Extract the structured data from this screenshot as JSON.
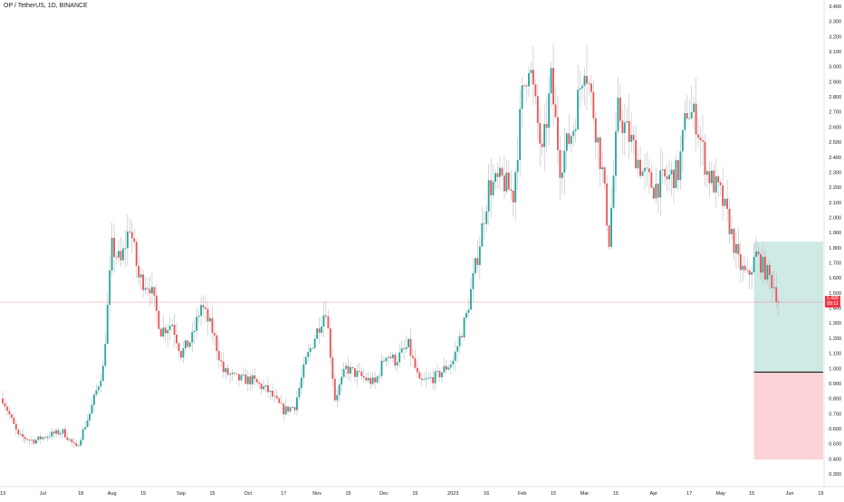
{
  "title": "OP / TetherUS, 1D, BINANCE",
  "colors": {
    "up": "#26a69a",
    "down": "#ef5350",
    "wick": "#b8bcc6",
    "profit_zone": "#cfe9e4",
    "loss_zone": "#fbd3d6",
    "price_line": "#f23645",
    "axis_text": "#131722",
    "axis_line": "#e0e3eb"
  },
  "price_tag": {
    "price": "1.439",
    "countdown": "08:11"
  },
  "chart_data": {
    "type": "candlestick",
    "title": "OP / TetherUS, 1D, BINANCE",
    "ylim": [
      0.2,
      3.45
    ],
    "y_ticks": [
      "3.400",
      "3.300",
      "3.200",
      "3.100",
      "3.000",
      "2.900",
      "2.800",
      "2.700",
      "2.600",
      "2.500",
      "2.400",
      "2.300",
      "2.200",
      "2.100",
      "2.000",
      "1.900",
      "1.800",
      "1.700",
      "1.600",
      "1.500",
      "1.400",
      "1.300",
      "1.200",
      "1.100",
      "1.000",
      "0.900",
      "0.800",
      "0.700",
      "0.600",
      "0.500",
      "0.400",
      "0.300"
    ],
    "x_ticks": [
      {
        "label": "13",
        "date": "2022-06-13"
      },
      {
        "label": "Jul",
        "date": "2022-07-01"
      },
      {
        "label": "18",
        "date": "2022-07-18"
      },
      {
        "label": "Aug",
        "date": "2022-08-01"
      },
      {
        "label": "15",
        "date": "2022-08-15"
      },
      {
        "label": "Sep",
        "date": "2022-09-01"
      },
      {
        "label": "15",
        "date": "2022-09-15"
      },
      {
        "label": "Oct",
        "date": "2022-10-01"
      },
      {
        "label": "17",
        "date": "2022-10-17"
      },
      {
        "label": "Nov",
        "date": "2022-11-01"
      },
      {
        "label": "15",
        "date": "2022-11-15"
      },
      {
        "label": "Dec",
        "date": "2022-12-01"
      },
      {
        "label": "15",
        "date": "2022-12-15"
      },
      {
        "label": "2023",
        "date": "2023-01-01"
      },
      {
        "label": "16",
        "date": "2023-01-16"
      },
      {
        "label": "Feb",
        "date": "2023-02-01"
      },
      {
        "label": "15",
        "date": "2023-02-15"
      },
      {
        "label": "Mar",
        "date": "2023-03-01"
      },
      {
        "label": "15",
        "date": "2023-03-15"
      },
      {
        "label": "Apr",
        "date": "2023-04-01"
      },
      {
        "label": "17",
        "date": "2023-04-17"
      },
      {
        "label": "May",
        "date": "2023-05-01"
      },
      {
        "label": "15",
        "date": "2023-05-15"
      },
      {
        "label": "Jun",
        "date": "2023-06-01"
      },
      {
        "label": "15",
        "date": "2023-06-15"
      }
    ],
    "start_date": "2022-06-13",
    "current_price": 1.439,
    "close_anchors": [
      [
        "2022-06-13",
        0.8
      ],
      [
        "2022-06-20",
        0.55
      ],
      [
        "2022-06-27",
        0.52
      ],
      [
        "2022-07-04",
        0.56
      ],
      [
        "2022-07-10",
        0.58
      ],
      [
        "2022-07-16",
        0.47
      ],
      [
        "2022-07-22",
        0.7
      ],
      [
        "2022-07-28",
        1.0
      ],
      [
        "2022-08-01",
        1.8
      ],
      [
        "2022-08-05",
        1.7
      ],
      [
        "2022-08-09",
        1.95
      ],
      [
        "2022-08-13",
        1.6
      ],
      [
        "2022-08-18",
        1.55
      ],
      [
        "2022-08-23",
        1.25
      ],
      [
        "2022-08-28",
        1.3
      ],
      [
        "2022-09-01",
        1.1
      ],
      [
        "2022-09-06",
        1.2
      ],
      [
        "2022-09-10",
        1.42
      ],
      [
        "2022-09-15",
        1.25
      ],
      [
        "2022-09-20",
        0.98
      ],
      [
        "2022-09-26",
        0.93
      ],
      [
        "2022-10-03",
        0.92
      ],
      [
        "2022-10-10",
        0.85
      ],
      [
        "2022-10-17",
        0.72
      ],
      [
        "2022-10-22",
        0.75
      ],
      [
        "2022-10-27",
        1.05
      ],
      [
        "2022-11-01",
        1.25
      ],
      [
        "2022-11-05",
        1.4
      ],
      [
        "2022-11-09",
        0.8
      ],
      [
        "2022-11-14",
        1.0
      ],
      [
        "2022-11-20",
        0.95
      ],
      [
        "2022-11-27",
        0.9
      ],
      [
        "2022-12-02",
        1.1
      ],
      [
        "2022-12-06",
        1.05
      ],
      [
        "2022-12-12",
        1.15
      ],
      [
        "2022-12-17",
        0.9
      ],
      [
        "2022-12-25",
        0.95
      ],
      [
        "2023-01-01",
        1.05
      ],
      [
        "2023-01-07",
        1.35
      ],
      [
        "2023-01-12",
        1.75
      ],
      [
        "2023-01-17",
        2.2
      ],
      [
        "2023-01-23",
        2.25
      ],
      [
        "2023-01-28",
        2.15
      ],
      [
        "2023-02-01",
        2.8
      ],
      [
        "2023-02-04",
        3.05
      ],
      [
        "2023-02-10",
        2.4
      ],
      [
        "2023-02-14",
        2.9
      ],
      [
        "2023-02-18",
        2.35
      ],
      [
        "2023-02-24",
        2.6
      ],
      [
        "2023-03-01",
        3.05
      ],
      [
        "2023-03-05",
        2.7
      ],
      [
        "2023-03-09",
        2.3
      ],
      [
        "2023-03-12",
        1.85
      ],
      [
        "2023-03-16",
        2.7
      ],
      [
        "2023-03-22",
        2.5
      ],
      [
        "2023-03-27",
        2.3
      ],
      [
        "2023-04-01",
        2.2
      ],
      [
        "2023-04-06",
        2.25
      ],
      [
        "2023-04-12",
        2.3
      ],
      [
        "2023-04-16",
        2.72
      ],
      [
        "2023-04-20",
        2.65
      ],
      [
        "2023-04-25",
        2.3
      ],
      [
        "2023-05-01",
        2.15
      ],
      [
        "2023-05-05",
        1.95
      ],
      [
        "2023-05-09",
        1.7
      ],
      [
        "2023-05-13",
        1.6
      ],
      [
        "2023-05-17",
        1.75
      ],
      [
        "2023-05-21",
        1.65
      ],
      [
        "2023-05-25",
        1.55
      ],
      [
        "2023-05-27",
        1.44
      ]
    ],
    "position": {
      "type": "long",
      "start_date": "2023-05-16",
      "end_date": "2023-06-16",
      "entry": 0.975,
      "target": 1.84,
      "stop": 0.395
    }
  }
}
